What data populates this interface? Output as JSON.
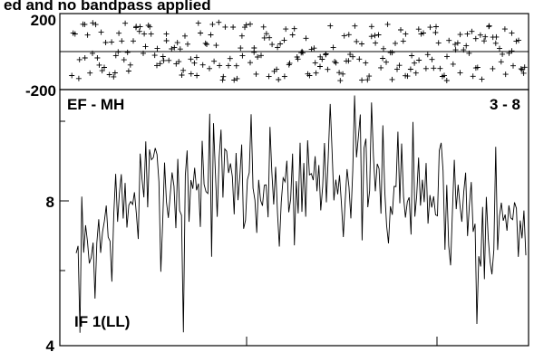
{
  "title": "ed and no bandpass applied",
  "phase_panel": {
    "tick_labels": {
      "top": "200",
      "bottom": "-200"
    },
    "y_range": [
      -200,
      200
    ],
    "grid_line_y": 0
  },
  "amp_panel": {
    "baseline_label": "EF - MH",
    "channel_label": "3 - 8",
    "if_label": "IF 1(LL)",
    "tick_labels": {
      "mid": "8",
      "bottom": "4"
    },
    "log_scale": true,
    "y_range": [
      4,
      16
    ]
  },
  "chart_data": [
    {
      "type": "scatter",
      "marker": "+",
      "ylabel": "",
      "ylim": [
        -200,
        200
      ],
      "ticks": [
        -200,
        200
      ],
      "grid": "horizontal line at 0",
      "n_points": 240,
      "seed": 31
    },
    {
      "type": "line",
      "ylabel": "",
      "yscale": "log",
      "ylim": [
        4,
        16
      ],
      "ticks": [
        4,
        8
      ],
      "n_points": 240,
      "values_mean": [
        6.0,
        9.2,
        10.0,
        9.2,
        10.3,
        9.4,
        8.8,
        7.4
      ],
      "seed": 7,
      "spikes": [
        {
          "index": 57,
          "value": 4.3
        },
        {
          "index": 213,
          "value": 4.5
        },
        {
          "index": 148,
          "value": 15.5
        },
        {
          "index": 135,
          "value": 14.8
        },
        {
          "index": 93,
          "value": 14.0
        }
      ],
      "legend": "none"
    }
  ]
}
